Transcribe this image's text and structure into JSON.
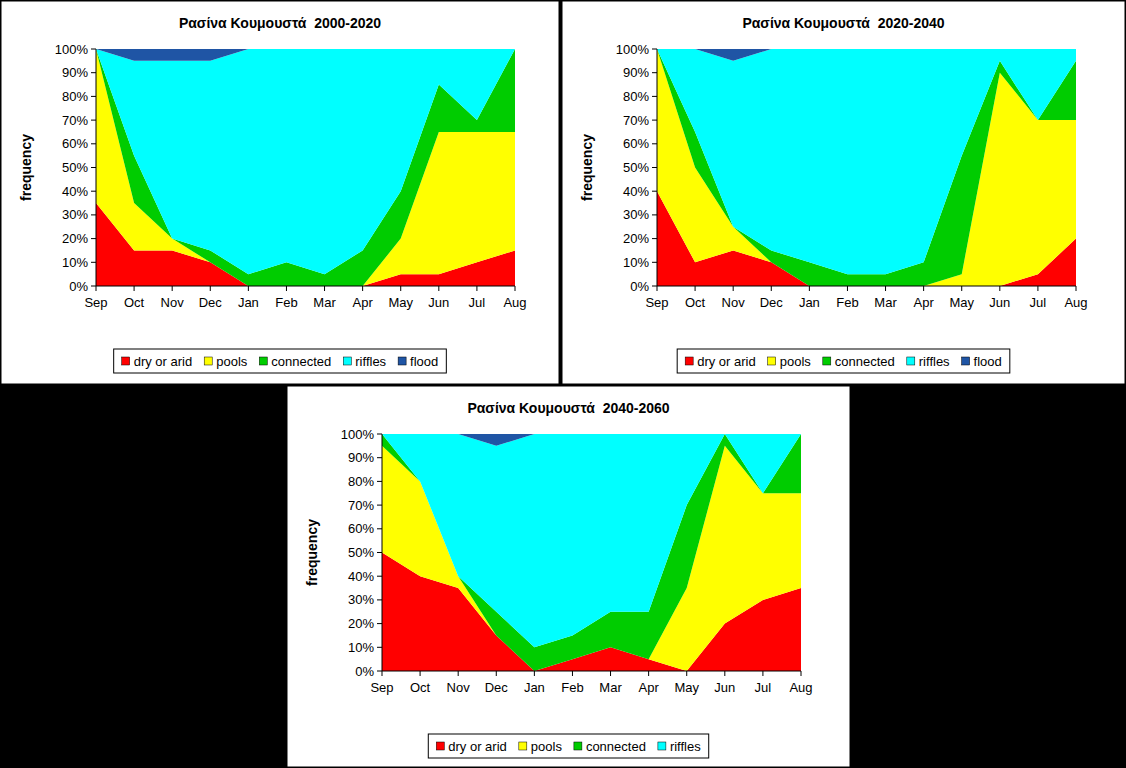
{
  "chart_data": [
    {
      "type": "area",
      "title": "Ρασίνα Κουμουστά  2000-2020",
      "ylabel": "frequency",
      "stacked": true,
      "grid": false,
      "legend": "bottom",
      "categories": [
        "Sep",
        "Oct",
        "Nov",
        "Dec",
        "Jan",
        "Feb",
        "Mar",
        "Apr",
        "May",
        "Jun",
        "Jul",
        "Aug"
      ],
      "ylim": [
        0,
        100
      ],
      "yticks": [
        {
          "value": 0,
          "label": "0%"
        },
        {
          "value": 10,
          "label": "10%"
        },
        {
          "value": 20,
          "label": "20%"
        },
        {
          "value": 30,
          "label": "30%"
        },
        {
          "value": 40,
          "label": "40%"
        },
        {
          "value": 50,
          "label": "50%"
        },
        {
          "value": 60,
          "label": "60%"
        },
        {
          "value": 70,
          "label": "70%"
        },
        {
          "value": 80,
          "label": "80%"
        },
        {
          "value": 90,
          "label": "90%"
        },
        {
          "value": 100,
          "label": "100%"
        }
      ],
      "series": [
        {
          "name": "dry or arid",
          "color": "#ff0000",
          "values": [
            35,
            15,
            15,
            10,
            0,
            0,
            0,
            0,
            5,
            5,
            10,
            15
          ]
        },
        {
          "name": "pools",
          "color": "#ffff00",
          "values": [
            65,
            20,
            5,
            0,
            0,
            0,
            0,
            0,
            15,
            60,
            55,
            50
          ]
        },
        {
          "name": "connected",
          "color": "#00cc00",
          "values": [
            0,
            20,
            0,
            5,
            5,
            10,
            5,
            15,
            20,
            20,
            5,
            35
          ]
        },
        {
          "name": "riffles",
          "color": "#00ffff",
          "values": [
            0,
            40,
            75,
            80,
            95,
            90,
            95,
            85,
            60,
            15,
            30,
            0
          ]
        },
        {
          "name": "flood",
          "color": "#1f55a5",
          "values": [
            0,
            5,
            5,
            5,
            0,
            0,
            0,
            0,
            0,
            0,
            0,
            0
          ]
        }
      ]
    },
    {
      "type": "area",
      "title": "Ρασίνα Κουμουστά  2020-2040",
      "ylabel": "frequency",
      "stacked": true,
      "grid": false,
      "legend": "bottom",
      "categories": [
        "Sep",
        "Oct",
        "Nov",
        "Dec",
        "Jan",
        "Feb",
        "Mar",
        "Apr",
        "May",
        "Jun",
        "Jul",
        "Aug"
      ],
      "ylim": [
        0,
        100
      ],
      "yticks": [
        {
          "value": 0,
          "label": "0%"
        },
        {
          "value": 10,
          "label": "10%"
        },
        {
          "value": 20,
          "label": "20%"
        },
        {
          "value": 30,
          "label": "30%"
        },
        {
          "value": 40,
          "label": "40%"
        },
        {
          "value": 50,
          "label": "50%"
        },
        {
          "value": 60,
          "label": "60%"
        },
        {
          "value": 70,
          "label": "70%"
        },
        {
          "value": 80,
          "label": "80%"
        },
        {
          "value": 90,
          "label": "90%"
        },
        {
          "value": 100,
          "label": "100%"
        }
      ],
      "series": [
        {
          "name": "dry or arid",
          "color": "#ff0000",
          "values": [
            40,
            10,
            15,
            10,
            0,
            0,
            0,
            0,
            0,
            0,
            5,
            20
          ]
        },
        {
          "name": "pools",
          "color": "#ffff00",
          "values": [
            60,
            40,
            10,
            0,
            0,
            0,
            0,
            0,
            5,
            90,
            65,
            50
          ]
        },
        {
          "name": "connected",
          "color": "#00cc00",
          "values": [
            0,
            15,
            0,
            5,
            10,
            5,
            5,
            10,
            50,
            5,
            0,
            25
          ]
        },
        {
          "name": "riffles",
          "color": "#00ffff",
          "values": [
            0,
            35,
            70,
            85,
            90,
            95,
            95,
            90,
            45,
            5,
            30,
            5
          ]
        },
        {
          "name": "flood",
          "color": "#1f55a5",
          "values": [
            0,
            0,
            5,
            0,
            0,
            0,
            0,
            0,
            0,
            0,
            0,
            0
          ]
        }
      ]
    },
    {
      "type": "area",
      "title": "Ρασίνα Κουμουστά  2040-2060",
      "ylabel": "frequency",
      "stacked": true,
      "grid": false,
      "legend": "bottom",
      "categories": [
        "Sep",
        "Oct",
        "Nov",
        "Dec",
        "Jan",
        "Feb",
        "Mar",
        "Apr",
        "May",
        "Jun",
        "Jul",
        "Aug"
      ],
      "ylim": [
        0,
        100
      ],
      "yticks": [
        {
          "value": 0,
          "label": "0%"
        },
        {
          "value": 10,
          "label": "10%"
        },
        {
          "value": 20,
          "label": "20%"
        },
        {
          "value": 30,
          "label": "30%"
        },
        {
          "value": 40,
          "label": "40%"
        },
        {
          "value": 50,
          "label": "50%"
        },
        {
          "value": 60,
          "label": "60%"
        },
        {
          "value": 70,
          "label": "70%"
        },
        {
          "value": 80,
          "label": "80%"
        },
        {
          "value": 90,
          "label": "90%"
        },
        {
          "value": 100,
          "label": "100%"
        }
      ],
      "series": [
        {
          "name": "dry or arid",
          "color": "#ff0000",
          "values": [
            50,
            40,
            35,
            15,
            0,
            5,
            10,
            5,
            0,
            20,
            30,
            35
          ]
        },
        {
          "name": "pools",
          "color": "#ffff00",
          "values": [
            45,
            40,
            5,
            0,
            0,
            0,
            0,
            0,
            35,
            75,
            45,
            40
          ]
        },
        {
          "name": "connected",
          "color": "#00cc00",
          "values": [
            5,
            0,
            0,
            10,
            10,
            10,
            15,
            20,
            35,
            5,
            0,
            25
          ]
        },
        {
          "name": "riffles",
          "color": "#00ffff",
          "values": [
            0,
            20,
            60,
            70,
            90,
            85,
            75,
            75,
            30,
            0,
            25,
            0
          ]
        },
        {
          "color": "#1f55a5",
          "values": [
            0,
            0,
            0,
            5,
            0,
            0,
            0,
            0,
            0,
            0,
            0,
            0
          ]
        }
      ]
    }
  ]
}
